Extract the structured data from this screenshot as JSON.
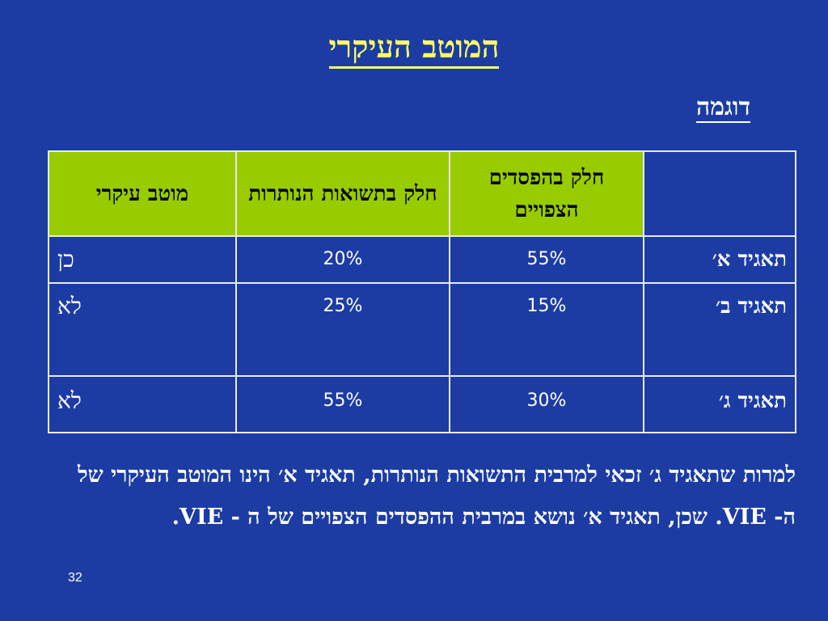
{
  "slide": {
    "title": "המוטב העיקרי",
    "subtitle": "דוגמה",
    "page_number": "32",
    "colors": {
      "background": "#1C3CA4",
      "title": "#FFFF66",
      "header_fill": "#99CC00",
      "text": "#FFFFFF"
    }
  },
  "table": {
    "headers": [
      "",
      "חלק בהפסדים הצפויים",
      "חלק בתשואות הנותרות",
      "מוטב עיקרי"
    ],
    "rows": [
      {
        "entity": "תאגיד א׳",
        "expected_losses": "55%",
        "residual_returns": "20%",
        "primary_beneficiary": "כן"
      },
      {
        "entity": "תאגיד ב׳",
        "expected_losses": "15%",
        "residual_returns": "25%",
        "primary_beneficiary": "לא"
      },
      {
        "entity": "תאגיד ג׳",
        "expected_losses": "30%",
        "residual_returns": "55%",
        "primary_beneficiary": "לא"
      }
    ]
  },
  "paragraph": "למרות שתאגיד ג׳ זכאי למרבית התשואות הנותרות, תאגיד א׳ הינו המוטב העיקרי של ה- VIE. שכן, תאגיד א׳ נושא במרבית ההפסדים הצפויים של ה - VIE."
}
